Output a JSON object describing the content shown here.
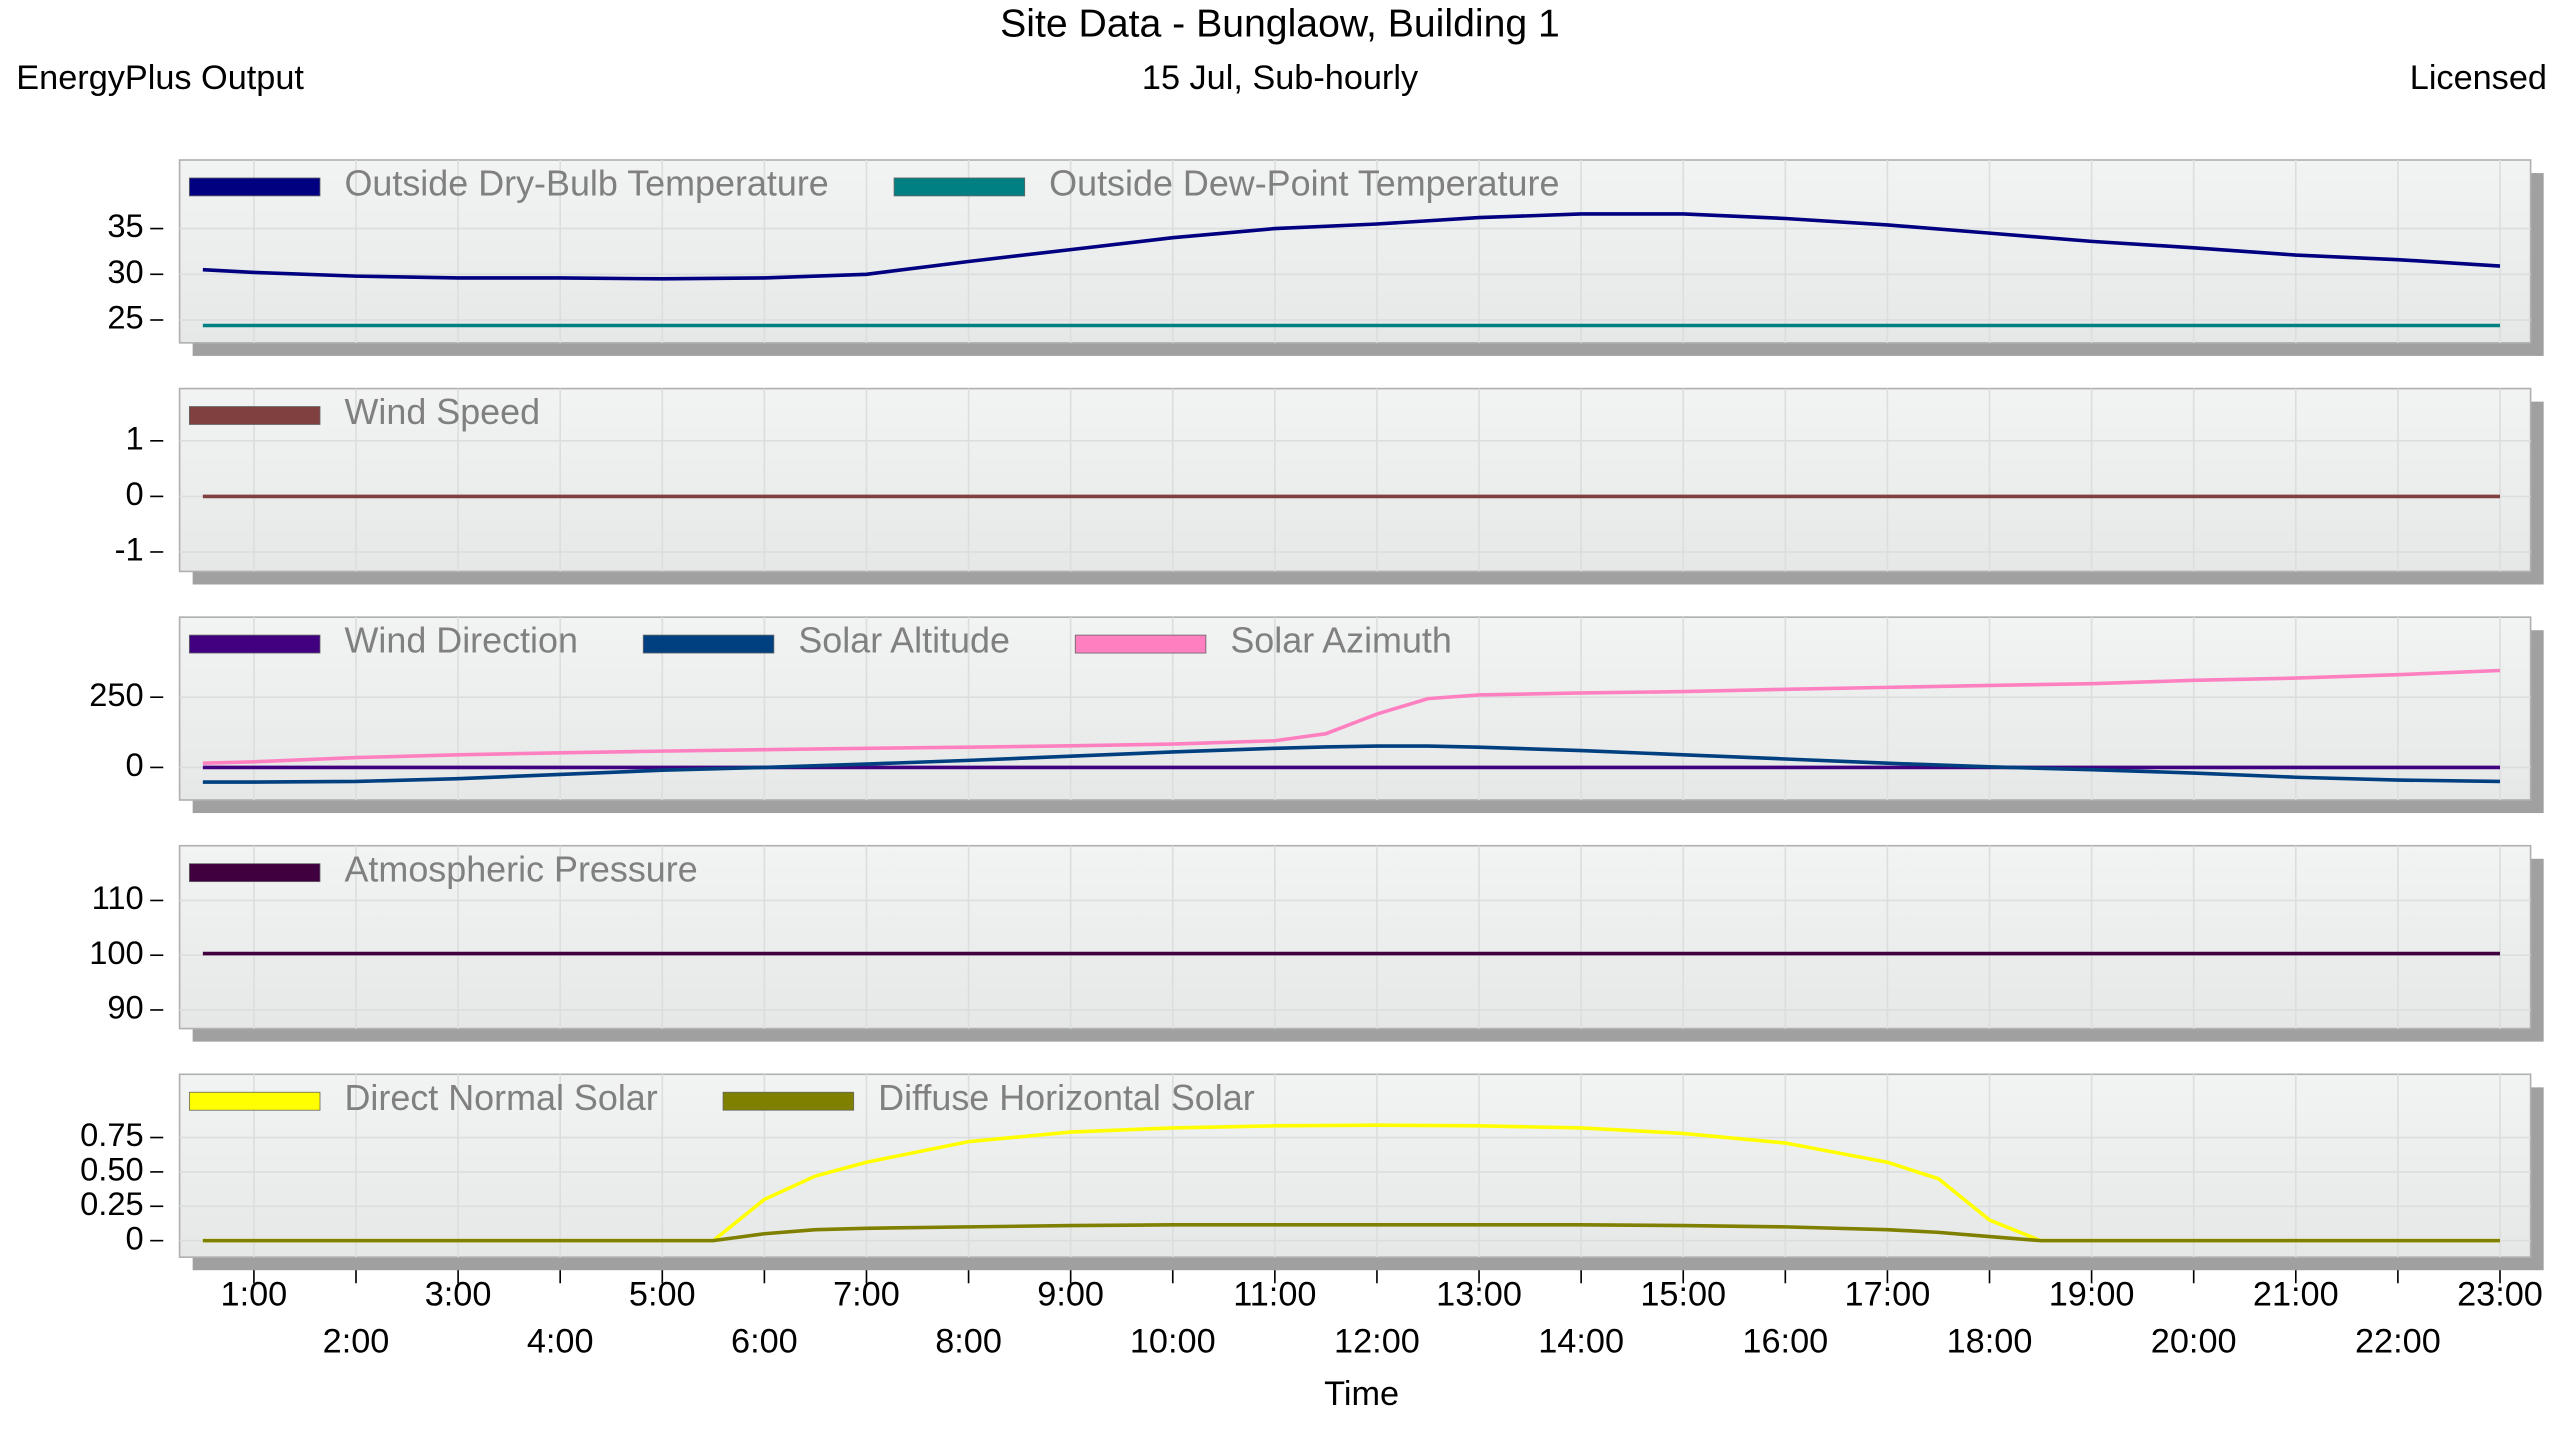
{
  "header": {
    "title": "Site Data - Bunglaow, Building 1",
    "left": "EnergyPlus Output",
    "center": "15 Jul, Sub-hourly",
    "right": "Licensed"
  },
  "chart_data": [
    {
      "type": "line",
      "xlim": [
        0.4,
        23.3
      ],
      "ylim": [
        22.5,
        42.5
      ],
      "yticks": [
        25,
        30,
        35
      ],
      "grid": true,
      "x": [
        0.5,
        1,
        2,
        3,
        4,
        5,
        6,
        7,
        8,
        9,
        10,
        11,
        12,
        13,
        14,
        15,
        16,
        17,
        18,
        19,
        20,
        21,
        22,
        23
      ],
      "series": [
        {
          "name": "Outside Dry-Bulb Temperature",
          "color": "#000080",
          "values": [
            30.5,
            30.2,
            29.8,
            29.6,
            29.6,
            29.5,
            29.6,
            30,
            31.4,
            32.7,
            34,
            35,
            35.5,
            36.2,
            36.6,
            36.6,
            36.1,
            35.4,
            34.5,
            33.6,
            32.9,
            32.1,
            31.6,
            30.9
          ]
        },
        {
          "name": "Outside Dew-Point Temperature",
          "color": "#008080",
          "values": [
            24.4,
            24.4,
            24.4,
            24.4,
            24.4,
            24.4,
            24.4,
            24.4,
            24.4,
            24.4,
            24.4,
            24.4,
            24.4,
            24.4,
            24.4,
            24.4,
            24.4,
            24.4,
            24.4,
            24.4,
            24.4,
            24.4,
            24.4,
            24.4
          ]
        }
      ]
    },
    {
      "type": "line",
      "xlim": [
        0.4,
        23.3
      ],
      "ylim": [
        -1.35,
        1.94
      ],
      "yticks": [
        -1,
        0,
        1
      ],
      "grid": true,
      "x": [
        0.5,
        1,
        2,
        3,
        4,
        5,
        6,
        7,
        8,
        9,
        10,
        11,
        12,
        13,
        14,
        15,
        16,
        17,
        18,
        19,
        20,
        21,
        22,
        23
      ],
      "series": [
        {
          "name": "Wind Speed",
          "color": "#804040",
          "values": [
            0,
            0,
            0,
            0,
            0,
            0,
            0,
            0,
            0,
            0,
            0,
            0,
            0,
            0,
            0,
            0,
            0,
            0,
            0,
            0,
            0,
            0,
            0,
            0
          ]
        }
      ]
    },
    {
      "type": "line",
      "xlim": [
        0.4,
        23.3
      ],
      "ylim": [
        -116,
        535
      ],
      "yticks": [
        0,
        250
      ],
      "grid": true,
      "x": [
        0.5,
        1,
        2,
        3,
        4,
        5,
        6,
        7,
        8,
        9,
        10,
        11,
        11.5,
        12,
        12.5,
        13,
        14,
        15,
        16,
        17,
        18,
        19,
        20,
        21,
        22,
        23
      ],
      "series": [
        {
          "name": "Wind Direction",
          "color": "#400080",
          "values": [
            0,
            0,
            0,
            0,
            0,
            0,
            0,
            0,
            0,
            0,
            0,
            0,
            0,
            0,
            0,
            0,
            0,
            0,
            0,
            0,
            0,
            0,
            0,
            0,
            0,
            0
          ]
        },
        {
          "name": "Solar Altitude",
          "color": "#004080",
          "values": [
            -52,
            -52,
            -50,
            -40,
            -25,
            -10,
            0,
            12,
            25,
            40,
            55,
            68,
            73,
            76,
            76,
            72,
            60,
            45,
            30,
            15,
            2,
            -8,
            -20,
            -35,
            -45,
            -50
          ]
        },
        {
          "name": "Solar Azimuth",
          "color": "#ff80c0",
          "values": [
            15,
            20,
            35,
            45,
            52,
            58,
            63,
            68,
            72,
            77,
            83,
            95,
            120,
            190,
            245,
            258,
            265,
            270,
            278,
            285,
            292,
            298,
            310,
            318,
            330,
            345
          ]
        }
      ]
    },
    {
      "type": "line",
      "xlim": [
        0.4,
        23.3
      ],
      "ylim": [
        86.6,
        120
      ],
      "yticks": [
        90,
        100,
        110
      ],
      "grid": true,
      "x": [
        0.5,
        1,
        2,
        3,
        4,
        5,
        6,
        7,
        8,
        9,
        10,
        11,
        12,
        13,
        14,
        15,
        16,
        17,
        18,
        19,
        20,
        21,
        22,
        23
      ],
      "series": [
        {
          "name": "Atmospheric Pressure",
          "color": "#400040",
          "values": [
            100.3,
            100.3,
            100.3,
            100.3,
            100.3,
            100.3,
            100.3,
            100.3,
            100.3,
            100.3,
            100.3,
            100.3,
            100.3,
            100.3,
            100.3,
            100.3,
            100.3,
            100.3,
            100.3,
            100.3,
            100.3,
            100.3,
            100.3,
            100.3
          ]
        }
      ]
    },
    {
      "type": "line",
      "xlim": [
        0.4,
        23.3
      ],
      "ylim": [
        -0.12,
        1.21
      ],
      "grid": true,
      "xlabel": "Time",
      "yticks": [
        0,
        0.25,
        {
          "value": 0.5,
          "label": "0.50"
        },
        0.75
      ],
      "xticks": [
        {
          "value": 1,
          "label": "1:00"
        },
        {
          "value": 2,
          "label": "2:00"
        },
        {
          "value": 3,
          "label": "3:00"
        },
        {
          "value": 4,
          "label": "4:00"
        },
        {
          "value": 5,
          "label": "5:00"
        },
        {
          "value": 6,
          "label": "6:00"
        },
        {
          "value": 7,
          "label": "7:00"
        },
        {
          "value": 8,
          "label": "8:00"
        },
        {
          "value": 9,
          "label": "9:00"
        },
        {
          "value": 10,
          "label": "10:00"
        },
        {
          "value": 11,
          "label": "11:00"
        },
        {
          "value": 12,
          "label": "12:00"
        },
        {
          "value": 13,
          "label": "13:00"
        },
        {
          "value": 14,
          "label": "14:00"
        },
        {
          "value": 15,
          "label": "15:00"
        },
        {
          "value": 16,
          "label": "16:00"
        },
        {
          "value": 17,
          "label": "17:00"
        },
        {
          "value": 18,
          "label": "18:00"
        },
        {
          "value": 19,
          "label": "19:00"
        },
        {
          "value": 20,
          "label": "20:00"
        },
        {
          "value": 21,
          "label": "21:00"
        },
        {
          "value": 22,
          "label": "22:00"
        },
        {
          "value": 23,
          "label": "23:00"
        }
      ],
      "x": [
        0.5,
        1,
        2,
        3,
        4,
        5,
        5.5,
        6,
        6.5,
        7,
        8,
        9,
        10,
        11,
        12,
        13,
        14,
        15,
        16,
        17,
        17.5,
        18,
        18.5,
        19,
        20,
        21,
        22,
        23
      ],
      "series": [
        {
          "name": "Direct Normal Solar",
          "color": "#ffff00",
          "values": [
            0,
            0,
            0,
            0,
            0,
            0,
            0,
            0.3,
            0.47,
            0.57,
            0.72,
            0.79,
            0.82,
            0.835,
            0.84,
            0.835,
            0.82,
            0.78,
            0.71,
            0.57,
            0.45,
            0.15,
            0,
            0,
            0,
            0,
            0,
            0
          ]
        },
        {
          "name": "Diffuse Horizontal Solar",
          "color": "#808000",
          "values": [
            0,
            0,
            0,
            0,
            0,
            0,
            0,
            0.05,
            0.08,
            0.09,
            0.1,
            0.11,
            0.115,
            0.115,
            0.115,
            0.115,
            0.115,
            0.11,
            0.1,
            0.08,
            0.06,
            0.03,
            0,
            0,
            0,
            0,
            0,
            0
          ]
        }
      ]
    }
  ]
}
